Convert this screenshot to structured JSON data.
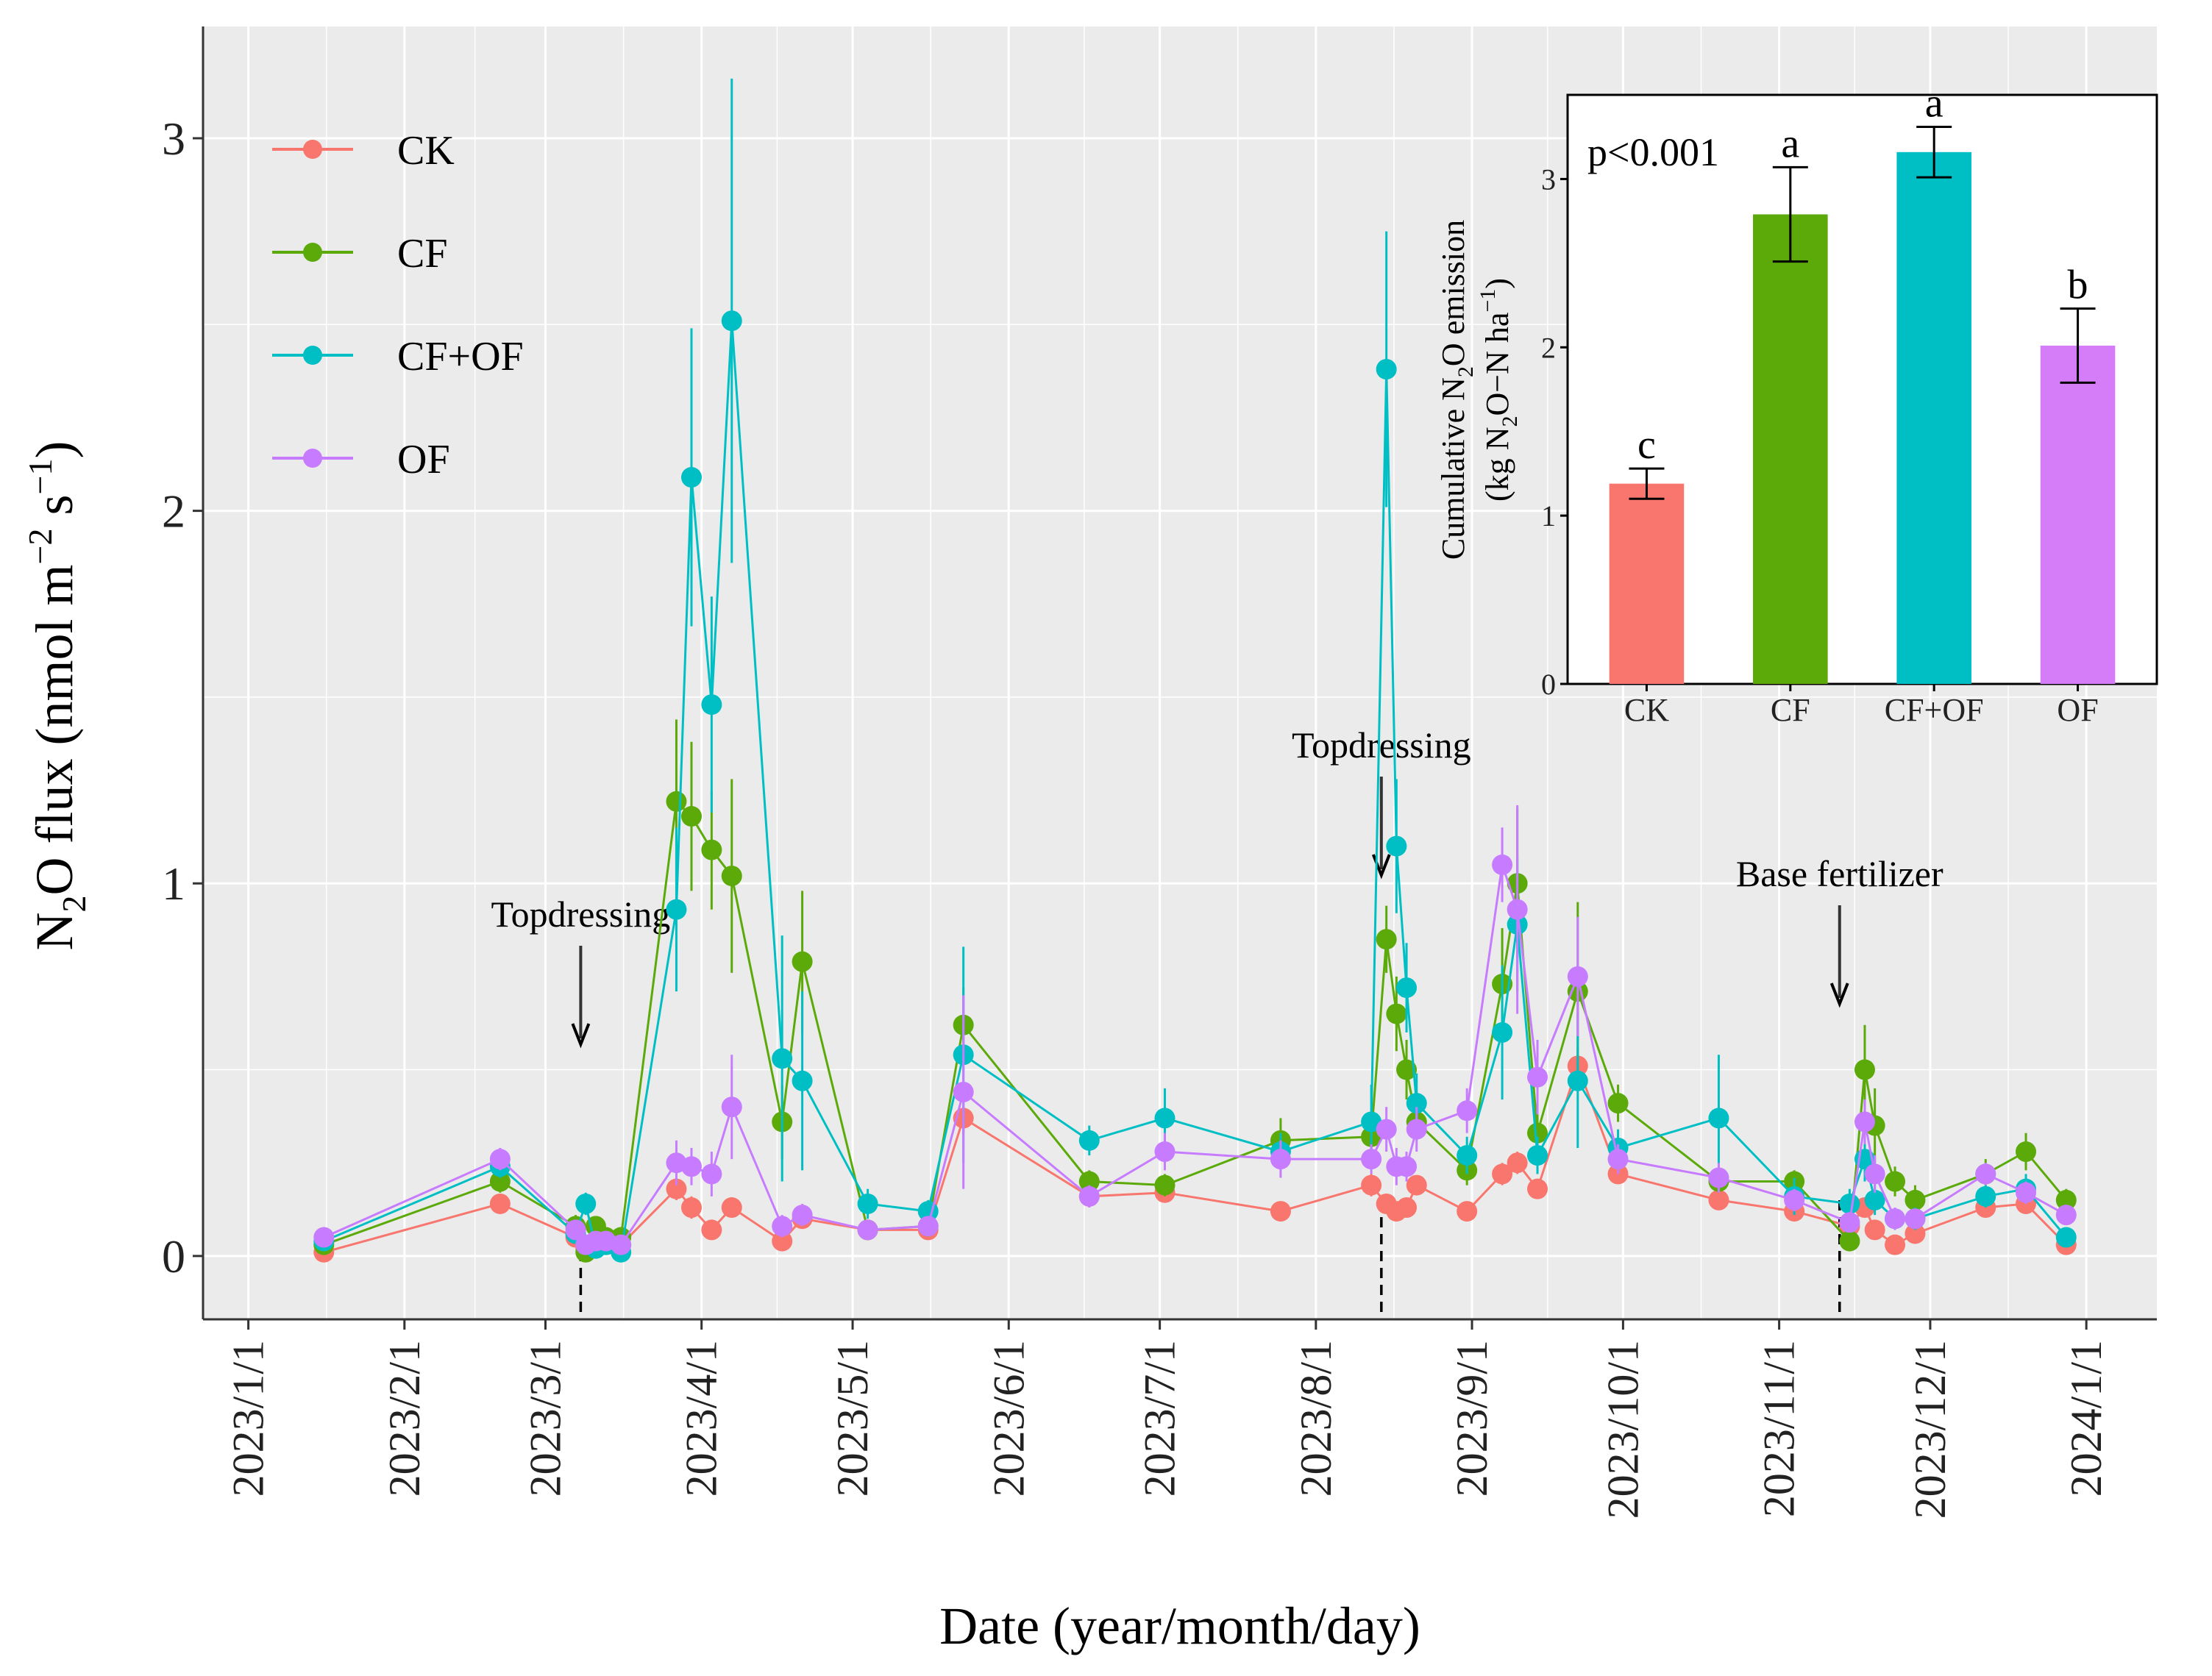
{
  "chart_data": [
    {
      "type": "line",
      "title": "",
      "xlabel": "Date (year/month/day)",
      "ylabel_parts": [
        "N",
        "2",
        "O flux (nmol m",
        "−2",
        " s",
        "−1",
        ")"
      ],
      "ylim": [
        -0.17,
        3.3
      ],
      "yticks": [
        0,
        1,
        2,
        3
      ],
      "xlim": [
        "2022-12-23",
        "2024-01-15"
      ],
      "xticks": [
        {
          "date": "2023-01-01",
          "label": "2023/1/1"
        },
        {
          "date": "2023-02-01",
          "label": "2023/2/1"
        },
        {
          "date": "2023-03-01",
          "label": "2023/3/1"
        },
        {
          "date": "2023-04-01",
          "label": "2023/4/1"
        },
        {
          "date": "2023-05-01",
          "label": "2023/5/1"
        },
        {
          "date": "2023-06-01",
          "label": "2023/6/1"
        },
        {
          "date": "2023-07-01",
          "label": "2023/7/1"
        },
        {
          "date": "2023-08-01",
          "label": "2023/8/1"
        },
        {
          "date": "2023-09-01",
          "label": "2023/9/1"
        },
        {
          "date": "2023-10-01",
          "label": "2023/10/1"
        },
        {
          "date": "2023-11-01",
          "label": "2023/11/1"
        },
        {
          "date": "2023-12-01",
          "label": "2023/12/1"
        },
        {
          "date": "2024-01-01",
          "label": "2024/1/1"
        }
      ],
      "legend_position": "top-left",
      "annotations": [
        {
          "label": "Topdressing",
          "date": "2023-03-08"
        },
        {
          "label": "Topdressing",
          "date": "2023-08-14"
        },
        {
          "label": "Base fertilizer",
          "date": "2023-11-13"
        }
      ],
      "series": [
        {
          "name": "CK",
          "color": "#F8766D",
          "points": [
            [
              "2023-01-16",
              0.01,
              0.01
            ],
            [
              "2023-02-20",
              0.14,
              0.02
            ],
            [
              "2023-03-07",
              0.05,
              0.02
            ],
            [
              "2023-03-09",
              0.02,
              0.01
            ],
            [
              "2023-03-11",
              0.04,
              0.01
            ],
            [
              "2023-03-13",
              0.03,
              0.01
            ],
            [
              "2023-03-16",
              0.03,
              0.01
            ],
            [
              "2023-03-27",
              0.18,
              0.03
            ],
            [
              "2023-03-30",
              0.13,
              0.03
            ],
            [
              "2023-04-03",
              0.07,
              0.02
            ],
            [
              "2023-04-07",
              0.13,
              0.02
            ],
            [
              "2023-04-17",
              0.04,
              0.02
            ],
            [
              "2023-04-21",
              0.1,
              0.02
            ],
            [
              "2023-05-04",
              0.07,
              0.02
            ],
            [
              "2023-05-16",
              0.07,
              0.02
            ],
            [
              "2023-05-23",
              0.37,
              0.04
            ],
            [
              "2023-06-17",
              0.16,
              0.02
            ],
            [
              "2023-07-02",
              0.17,
              0.02
            ],
            [
              "2023-07-25",
              0.12,
              0.02
            ],
            [
              "2023-08-12",
              0.19,
              0.03
            ],
            [
              "2023-08-15",
              0.14,
              0.02
            ],
            [
              "2023-08-17",
              0.12,
              0.02
            ],
            [
              "2023-08-19",
              0.13,
              0.02
            ],
            [
              "2023-08-21",
              0.19,
              0.02
            ],
            [
              "2023-08-31",
              0.12,
              0.02
            ],
            [
              "2023-09-07",
              0.22,
              0.03
            ],
            [
              "2023-09-10",
              0.25,
              0.03
            ],
            [
              "2023-09-14",
              0.18,
              0.02
            ],
            [
              "2023-09-22",
              0.51,
              0.05
            ],
            [
              "2023-09-30",
              0.22,
              0.02
            ],
            [
              "2023-10-20",
              0.15,
              0.02
            ],
            [
              "2023-11-04",
              0.12,
              0.02
            ],
            [
              "2023-11-15",
              0.08,
              0.02
            ],
            [
              "2023-11-18",
              0.13,
              0.02
            ],
            [
              "2023-11-20",
              0.07,
              0.02
            ],
            [
              "2023-11-24",
              0.03,
              0.01
            ],
            [
              "2023-11-28",
              0.06,
              0.02
            ],
            [
              "2023-12-12",
              0.13,
              0.02
            ],
            [
              "2023-12-20",
              0.14,
              0.02
            ],
            [
              "2023-12-28",
              0.03,
              0.01
            ]
          ]
        },
        {
          "name": "CF",
          "color": "#5BAA0A",
          "points": [
            [
              "2023-01-16",
              0.03,
              0.01
            ],
            [
              "2023-02-20",
              0.2,
              0.03
            ],
            [
              "2023-03-07",
              0.08,
              0.03
            ],
            [
              "2023-03-09",
              0.01,
              0.01
            ],
            [
              "2023-03-11",
              0.08,
              0.02
            ],
            [
              "2023-03-13",
              0.05,
              0.02
            ],
            [
              "2023-03-16",
              0.05,
              0.02
            ],
            [
              "2023-03-27",
              1.22,
              0.22
            ],
            [
              "2023-03-30",
              1.18,
              0.2
            ],
            [
              "2023-04-03",
              1.09,
              0.16
            ],
            [
              "2023-04-07",
              1.02,
              0.26
            ],
            [
              "2023-04-17",
              0.36,
              0.1
            ],
            [
              "2023-04-21",
              0.79,
              0.19
            ],
            [
              "2023-05-04",
              0.07,
              0.02
            ],
            [
              "2023-05-16",
              0.08,
              0.02
            ],
            [
              "2023-05-23",
              0.62,
              0.1
            ],
            [
              "2023-06-17",
              0.2,
              0.03
            ],
            [
              "2023-07-02",
              0.19,
              0.03
            ],
            [
              "2023-07-25",
              0.31,
              0.06
            ],
            [
              "2023-08-12",
              0.32,
              0.06
            ],
            [
              "2023-08-15",
              0.85,
              0.09
            ],
            [
              "2023-08-17",
              0.65,
              0.1
            ],
            [
              "2023-08-19",
              0.5,
              0.08
            ],
            [
              "2023-08-21",
              0.36,
              0.05
            ],
            [
              "2023-08-31",
              0.23,
              0.04
            ],
            [
              "2023-09-07",
              0.73,
              0.15
            ],
            [
              "2023-09-10",
              1.0,
              0.2
            ],
            [
              "2023-09-14",
              0.33,
              0.05
            ],
            [
              "2023-09-22",
              0.71,
              0.24
            ],
            [
              "2023-09-30",
              0.41,
              0.05
            ],
            [
              "2023-10-20",
              0.2,
              0.03
            ],
            [
              "2023-11-04",
              0.2,
              0.03
            ],
            [
              "2023-11-15",
              0.04,
              0.02
            ],
            [
              "2023-11-18",
              0.5,
              0.12
            ],
            [
              "2023-11-20",
              0.35,
              0.1
            ],
            [
              "2023-11-24",
              0.2,
              0.04
            ],
            [
              "2023-11-28",
              0.15,
              0.04
            ],
            [
              "2023-12-12",
              0.22,
              0.04
            ],
            [
              "2023-12-20",
              0.28,
              0.05
            ],
            [
              "2023-12-28",
              0.15,
              0.03
            ]
          ]
        },
        {
          "name": "CF+OF",
          "color": "#00BFC4",
          "points": [
            [
              "2023-01-16",
              0.04,
              0.01
            ],
            [
              "2023-02-20",
              0.24,
              0.03
            ],
            [
              "2023-03-07",
              0.06,
              0.02
            ],
            [
              "2023-03-09",
              0.14,
              0.03
            ],
            [
              "2023-03-11",
              0.02,
              0.01
            ],
            [
              "2023-03-13",
              0.03,
              0.01
            ],
            [
              "2023-03-16",
              0.01,
              0.01
            ],
            [
              "2023-03-27",
              0.93,
              0.22
            ],
            [
              "2023-03-30",
              2.09,
              0.4
            ],
            [
              "2023-04-03",
              1.48,
              0.29
            ],
            [
              "2023-04-07",
              2.51,
              0.65
            ],
            [
              "2023-04-17",
              0.53,
              0.33
            ],
            [
              "2023-04-21",
              0.47,
              0.24
            ],
            [
              "2023-05-04",
              0.14,
              0.04
            ],
            [
              "2023-05-16",
              0.12,
              0.03
            ],
            [
              "2023-05-23",
              0.54,
              0.29
            ],
            [
              "2023-06-17",
              0.31,
              0.04
            ],
            [
              "2023-07-02",
              0.37,
              0.08
            ],
            [
              "2023-07-25",
              0.28,
              0.05
            ],
            [
              "2023-08-12",
              0.36,
              0.1
            ],
            [
              "2023-08-15",
              2.38,
              0.37
            ],
            [
              "2023-08-17",
              1.1,
              0.18
            ],
            [
              "2023-08-19",
              0.72,
              0.12
            ],
            [
              "2023-08-21",
              0.41,
              0.08
            ],
            [
              "2023-08-31",
              0.27,
              0.05
            ],
            [
              "2023-09-07",
              0.6,
              0.18
            ],
            [
              "2023-09-10",
              0.89,
              0.18
            ],
            [
              "2023-09-14",
              0.27,
              0.05
            ],
            [
              "2023-09-22",
              0.47,
              0.18
            ],
            [
              "2023-09-30",
              0.29,
              0.05
            ],
            [
              "2023-10-20",
              0.37,
              0.17
            ],
            [
              "2023-11-04",
              0.16,
              0.05
            ],
            [
              "2023-11-15",
              0.14,
              0.04
            ],
            [
              "2023-11-18",
              0.26,
              0.06
            ],
            [
              "2023-11-20",
              0.15,
              0.04
            ],
            [
              "2023-11-24",
              0.1,
              0.03
            ],
            [
              "2023-11-28",
              0.1,
              0.03
            ],
            [
              "2023-12-12",
              0.16,
              0.03
            ],
            [
              "2023-12-20",
              0.18,
              0.04
            ],
            [
              "2023-12-28",
              0.05,
              0.02
            ]
          ]
        },
        {
          "name": "OF",
          "color": "#C77CFF",
          "points": [
            [
              "2023-01-16",
              0.05,
              0.01
            ],
            [
              "2023-02-20",
              0.26,
              0.03
            ],
            [
              "2023-03-07",
              0.07,
              0.02
            ],
            [
              "2023-03-09",
              0.03,
              0.01
            ],
            [
              "2023-03-11",
              0.04,
              0.01
            ],
            [
              "2023-03-13",
              0.04,
              0.01
            ],
            [
              "2023-03-16",
              0.03,
              0.01
            ],
            [
              "2023-03-27",
              0.25,
              0.06
            ],
            [
              "2023-03-30",
              0.24,
              0.05
            ],
            [
              "2023-04-03",
              0.22,
              0.06
            ],
            [
              "2023-04-07",
              0.4,
              0.14
            ],
            [
              "2023-04-17",
              0.08,
              0.03
            ],
            [
              "2023-04-21",
              0.11,
              0.03
            ],
            [
              "2023-05-04",
              0.07,
              0.02
            ],
            [
              "2023-05-16",
              0.08,
              0.02
            ],
            [
              "2023-05-23",
              0.44,
              0.26
            ],
            [
              "2023-06-17",
              0.16,
              0.03
            ],
            [
              "2023-07-02",
              0.28,
              0.05
            ],
            [
              "2023-07-25",
              0.26,
              0.05
            ],
            [
              "2023-08-12",
              0.26,
              0.04
            ],
            [
              "2023-08-15",
              0.34,
              0.06
            ],
            [
              "2023-08-17",
              0.24,
              0.05
            ],
            [
              "2023-08-19",
              0.24,
              0.04
            ],
            [
              "2023-08-21",
              0.34,
              0.06
            ],
            [
              "2023-08-31",
              0.39,
              0.06
            ],
            [
              "2023-09-07",
              1.05,
              0.1
            ],
            [
              "2023-09-10",
              0.93,
              0.28
            ],
            [
              "2023-09-14",
              0.48,
              0.1
            ],
            [
              "2023-09-22",
              0.75,
              0.16
            ],
            [
              "2023-09-30",
              0.26,
              0.04
            ],
            [
              "2023-10-20",
              0.21,
              0.04
            ],
            [
              "2023-11-04",
              0.15,
              0.03
            ],
            [
              "2023-11-15",
              0.09,
              0.02
            ],
            [
              "2023-11-18",
              0.36,
              0.06
            ],
            [
              "2023-11-20",
              0.22,
              0.05
            ],
            [
              "2023-11-24",
              0.1,
              0.03
            ],
            [
              "2023-11-28",
              0.1,
              0.02
            ],
            [
              "2023-12-12",
              0.22,
              0.03
            ],
            [
              "2023-12-20",
              0.17,
              0.03
            ],
            [
              "2023-12-28",
              0.11,
              0.02
            ]
          ]
        }
      ]
    },
    {
      "type": "bar",
      "title": "",
      "annotation": "p<0.001",
      "ylabel_line1_parts": [
        "Cumulative N",
        "2",
        "O emission"
      ],
      "ylabel_line2_parts": [
        "(kg N",
        "2",
        "O−N ha",
        "−1",
        ")"
      ],
      "ylim": [
        0,
        3.5
      ],
      "yticks": [
        0,
        1,
        2,
        3
      ],
      "categories": [
        "CK",
        "CF",
        "CF+OF",
        "OF"
      ],
      "values": [
        1.19,
        2.79,
        3.16,
        2.01
      ],
      "errors": [
        0.09,
        0.28,
        0.15,
        0.22
      ],
      "letters": [
        "c",
        "a",
        "a",
        "b"
      ],
      "colors": [
        "#F8766D",
        "#5BAA0A",
        "#00BFC4",
        "#D57CF8"
      ]
    }
  ]
}
